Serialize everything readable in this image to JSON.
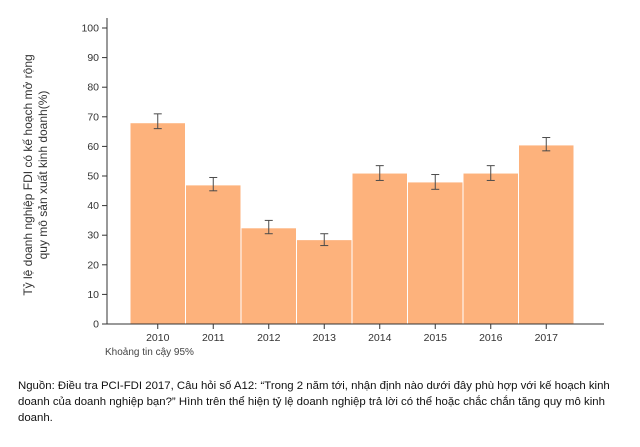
{
  "chart_data": {
    "type": "bar",
    "categories": [
      "2010",
      "2011",
      "2012",
      "2013",
      "2014",
      "2015",
      "2016",
      "2017"
    ],
    "values": [
      68,
      47,
      32.5,
      28.5,
      51,
      48,
      51,
      60.5
    ],
    "error_low": [
      66,
      45,
      30.5,
      26.5,
      48.5,
      45.5,
      48.5,
      58.5
    ],
    "error_high": [
      71,
      49.5,
      35,
      30.5,
      53.5,
      50.5,
      53.5,
      63
    ],
    "ylim": [
      0,
      100
    ],
    "yticks": [
      "0",
      "10",
      "20",
      "30",
      "40",
      "50",
      "60",
      "70",
      "80",
      "90",
      "100"
    ],
    "ylabel_line1": "Tỷ lệ doanh nghiệp FDI có kế hoạch mở rộng",
    "ylabel_line2": "quy mô sản xuất kinh doanh(%)",
    "note": "Khoảng tin cậy 95%",
    "colors": {
      "bar": "#fdb27c",
      "error": "#4a4a4a",
      "axis": "#333333"
    }
  },
  "source_text": "Nguồn: Điều tra PCI-FDI 2017, Câu hỏi số A12: “Trong 2 năm tới, nhận định nào dưới đây phù hợp với kế hoạch kinh doanh của doanh nghiệp bạn?” Hình trên thể hiện tỷ lệ doanh nghiệp trả lời có thể hoặc chắc chắn tăng quy mô kinh doanh."
}
